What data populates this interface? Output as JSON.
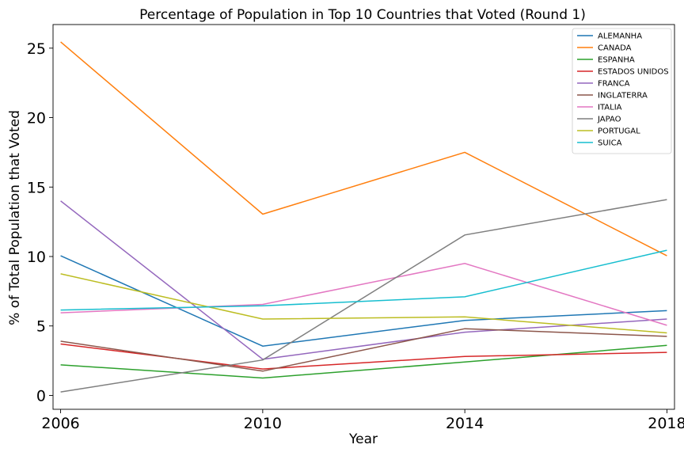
{
  "chart_data": {
    "type": "line",
    "title": "Percentage of Population in Top 10 Countries that Voted (Round 1)",
    "xlabel": "Year",
    "ylabel": "% of Total Population that Voted",
    "x": [
      2006,
      2010,
      2014,
      2018
    ],
    "x_ticks": [
      "2006",
      "2010",
      "2014",
      "2018"
    ],
    "y_ticks": [
      0,
      5,
      10,
      15,
      20,
      25
    ],
    "ylim": [
      -1.0,
      26.7
    ],
    "grid": false,
    "legend_position": "top-right",
    "series": [
      {
        "name": "ALEMANHA",
        "color": "#1f77b4",
        "values": [
          10.05,
          3.55,
          5.4,
          6.1
        ]
      },
      {
        "name": "CANADA",
        "color": "#ff7f0e",
        "values": [
          25.45,
          13.05,
          17.5,
          10.05
        ]
      },
      {
        "name": "ESPANHA",
        "color": "#2ca02c",
        "values": [
          2.2,
          1.25,
          2.4,
          3.6
        ]
      },
      {
        "name": "ESTADOS UNIDOS",
        "color": "#d62728",
        "values": [
          3.7,
          1.9,
          2.8,
          3.1
        ]
      },
      {
        "name": "FRANCA",
        "color": "#9467bd",
        "values": [
          14.0,
          2.6,
          4.55,
          5.5
        ]
      },
      {
        "name": "INGLATERRA",
        "color": "#8c564b",
        "values": [
          3.9,
          1.75,
          4.8,
          4.25
        ]
      },
      {
        "name": "ITALIA",
        "color": "#e377c2",
        "values": [
          5.95,
          6.55,
          9.5,
          5.05
        ]
      },
      {
        "name": "JAPAO",
        "color": "#7f7f7f",
        "values": [
          0.25,
          2.55,
          11.55,
          14.1
        ]
      },
      {
        "name": "PORTUGAL",
        "color": "#bcbd22",
        "values": [
          8.75,
          5.5,
          5.65,
          4.5
        ]
      },
      {
        "name": "SUICA",
        "color": "#17becf",
        "values": [
          6.15,
          6.45,
          7.1,
          10.45
        ]
      }
    ]
  }
}
